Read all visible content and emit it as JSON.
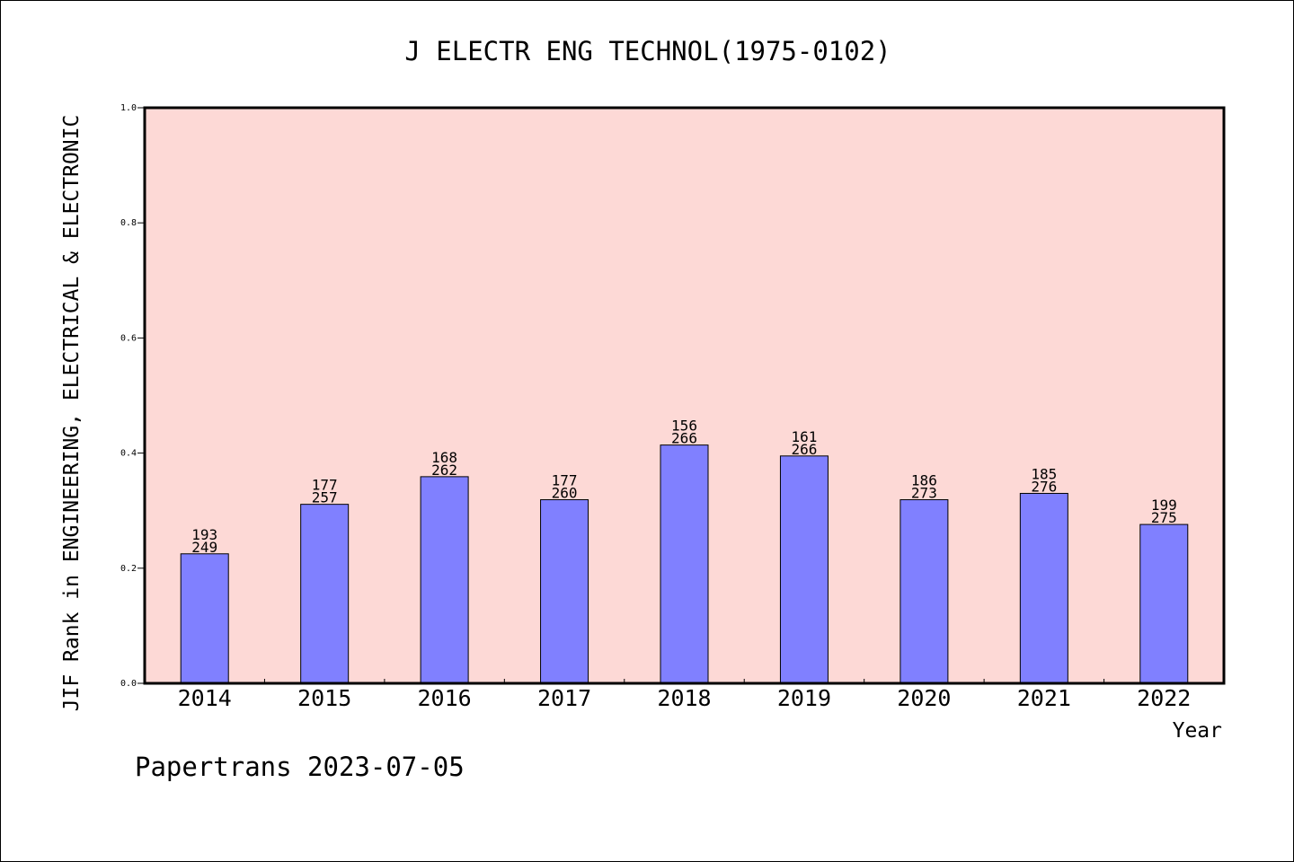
{
  "chart_data": {
    "type": "bar",
    "title": "J ELECTR ENG TECHNOL(1975-0102)",
    "xlabel": "Year",
    "ylabel": "JIF Rank in ENGINEERING, ELECTRICAL & ELECTRONIC",
    "ylim": [
      0,
      1
    ],
    "yticks": [
      "0.0",
      "0.2",
      "0.4",
      "0.6",
      "0.8",
      "1.0"
    ],
    "categories": [
      "2014",
      "2015",
      "2016",
      "2017",
      "2018",
      "2019",
      "2020",
      "2021",
      "2022"
    ],
    "values": [
      0.225,
      0.311,
      0.359,
      0.319,
      0.414,
      0.395,
      0.319,
      0.33,
      0.276
    ],
    "labels_top": [
      "193",
      "177",
      "168",
      "177",
      "156",
      "161",
      "186",
      "185",
      "199"
    ],
    "labels_bottom": [
      "249",
      "257",
      "262",
      "260",
      "266",
      "266",
      "273",
      "276",
      "275"
    ],
    "colors": {
      "plot_background": "#fdd9d6",
      "bar_fill": "#8080ff",
      "bar_stroke": "#000000",
      "axis": "#000000"
    },
    "grid": false
  },
  "footer": {
    "credit": "Papertrans 2023-07-05"
  }
}
